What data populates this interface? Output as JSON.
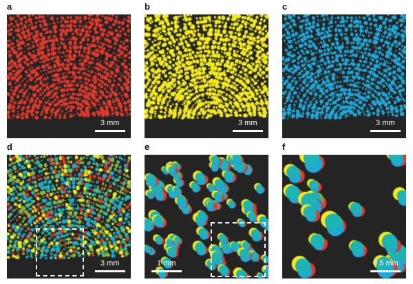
{
  "panels": [
    {
      "letter": "a",
      "scale_label": "3 mm",
      "color_mode": "red",
      "seed": 11,
      "density": 0.95,
      "dot_size": 2.2
    },
    {
      "letter": "b",
      "scale_label": "3 mm",
      "color_mode": "yellow",
      "seed": 23,
      "density": 0.95,
      "dot_size": 2.4
    },
    {
      "letter": "c",
      "scale_label": "3 mm",
      "color_mode": "cyan",
      "seed": 37,
      "density": 0.95,
      "dot_size": 2.2
    },
    {
      "letter": "d",
      "scale_label": "3 mm",
      "color_mode": "merge",
      "seed": 41,
      "density": 0.95,
      "dot_size": 2.3
    },
    {
      "letter": "e",
      "scale_label": "1 mm",
      "color_mode": "merge-zoom",
      "seed": 53,
      "density": 0.5,
      "dot_size": 6.5
    },
    {
      "letter": "f",
      "scale_label": "0.5 mm",
      "color_mode": "merge-zoom2",
      "seed": 67,
      "density": 0.25,
      "dot_size": 11
    }
  ],
  "colors": {
    "red": "#e03a2c",
    "yellow": "#f2ea1a",
    "cyan": "#1fa8d8",
    "teal": "#1eb3b6",
    "green": "#8fb33a",
    "background": "#242424"
  }
}
